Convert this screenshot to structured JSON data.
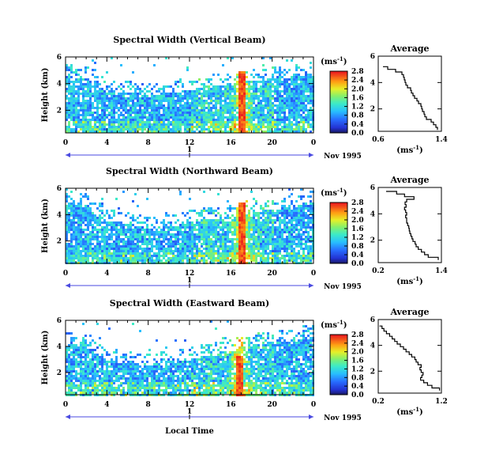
{
  "figure": {
    "xlabel": "Local Time",
    "date_label": "Nov 1995",
    "day_label": "1",
    "cbar_unit": "(ms",
    "cbar_unit_sup": "-1",
    "cbar_unit_close": ")",
    "avg_title": "Average",
    "avg_xunit": "(ms",
    "avg_xunit_sup": "-1",
    "avg_xunit_close": ")"
  },
  "chart_data": [
    {
      "type": "heatmap",
      "title": "Spectral Width (Vertical Beam)",
      "xlabel": "Local Time",
      "ylabel": "Height (km)",
      "xlim": [
        0,
        24
      ],
      "ylim": [
        0.3,
        6
      ],
      "xticks": [
        "0",
        "4",
        "8",
        "12",
        "16",
        "20",
        "0"
      ],
      "yticks": [
        "2",
        "4",
        "6"
      ],
      "colorbar": {
        "unit": "ms-1",
        "range": [
          0,
          2.8
        ],
        "ticks": [
          "0.0",
          "0.4",
          "0.8",
          "1.2",
          "1.6",
          "2.0",
          "2.4",
          "2.8"
        ]
      },
      "features": {
        "cloud_top_km": [
          4.6,
          4.5,
          3.4,
          3.5,
          3.2,
          3.4,
          3.6,
          3.9,
          4.0,
          4.3,
          4.4,
          4.6,
          4.9
        ],
        "max_band_hour": 17.0,
        "max_band_top_km": 5.0
      },
      "average": {
        "title": "Average",
        "xlabel": "ms-1",
        "xlim": [
          0.6,
          1.4
        ],
        "xticks": [
          "0.6",
          "1.4"
        ],
        "yticks": [
          "2",
          "4",
          "6"
        ],
        "height": [
          0.4,
          0.6,
          0.8,
          1.0,
          1.2,
          1.4,
          1.6,
          1.8,
          2.0,
          2.2,
          2.4,
          2.6,
          2.8,
          3.0,
          3.2,
          3.4,
          3.6,
          3.8,
          4.0,
          4.2,
          4.4,
          4.6,
          4.8,
          5.0,
          5.2
        ],
        "width": [
          1.35,
          1.33,
          1.3,
          1.27,
          1.21,
          1.19,
          1.18,
          1.16,
          1.15,
          1.14,
          1.11,
          1.09,
          1.06,
          1.04,
          1.02,
          1.01,
          0.97,
          0.95,
          0.94,
          0.93,
          0.92,
          0.9,
          0.82,
          0.72,
          0.66
        ]
      }
    },
    {
      "type": "heatmap",
      "title": "Spectral Width (Northward Beam)",
      "xlabel": "Local Time",
      "ylabel": "Height (km)",
      "xlim": [
        0,
        24
      ],
      "ylim": [
        0.3,
        6
      ],
      "xticks": [
        "0",
        "4",
        "8",
        "12",
        "16",
        "20",
        "0"
      ],
      "yticks": [
        "2",
        "4",
        "6"
      ],
      "colorbar": {
        "unit": "ms-1",
        "range": [
          0,
          2.8
        ],
        "ticks": [
          "0.0",
          "0.4",
          "0.8",
          "1.2",
          "1.6",
          "2.0",
          "2.4",
          "2.8"
        ]
      },
      "features": {
        "cloud_top_km": [
          5.0,
          4.7,
          3.6,
          3.4,
          3.0,
          3.2,
          3.5,
          3.8,
          3.9,
          4.2,
          4.4,
          4.7,
          5.0
        ],
        "max_band_hour": 17.0,
        "max_band_top_km": 5.0
      },
      "average": {
        "title": "Average",
        "xlabel": "ms-1",
        "xlim": [
          0.2,
          1.4
        ],
        "xticks": [
          "0.2",
          "1.4"
        ],
        "yticks": [
          "2",
          "4",
          "6"
        ],
        "height": [
          0.5,
          0.7,
          0.9,
          1.1,
          1.3,
          1.5,
          1.7,
          1.9,
          2.1,
          2.3,
          2.5,
          2.7,
          2.9,
          3.1,
          3.3,
          3.5,
          3.7,
          3.9,
          4.1,
          4.3,
          4.5,
          4.7,
          4.9,
          5.1,
          5.3,
          5.5,
          5.7
        ],
        "width": [
          1.34,
          1.15,
          1.08,
          1.02,
          0.96,
          0.92,
          0.9,
          0.86,
          0.84,
          0.82,
          0.8,
          0.79,
          0.78,
          0.76,
          0.74,
          0.74,
          0.72,
          0.74,
          0.72,
          0.7,
          0.73,
          0.71,
          0.74,
          0.88,
          0.7,
          0.55,
          0.35
        ]
      }
    },
    {
      "type": "heatmap",
      "title": "Spectral Width (Eastward Beam)",
      "xlabel": "Local Time",
      "ylabel": "Height (km)",
      "xlim": [
        0,
        24
      ],
      "ylim": [
        0.3,
        6
      ],
      "xticks": [
        "0",
        "4",
        "8",
        "12",
        "16",
        "20",
        "0"
      ],
      "yticks": [
        "2",
        "4",
        "6"
      ],
      "colorbar": {
        "unit": "ms-1",
        "range": [
          0,
          2.8
        ],
        "ticks": [
          "0.0",
          "0.4",
          "0.8",
          "1.2",
          "1.6",
          "2.0",
          "2.4",
          "2.8"
        ]
      },
      "features": {
        "cloud_top_km": [
          4.3,
          4.0,
          3.0,
          2.8,
          2.6,
          2.8,
          3.1,
          3.5,
          3.8,
          4.2,
          4.4,
          4.6,
          4.9
        ],
        "max_band_hour": 16.7,
        "max_band_top_km": 3.3
      },
      "average": {
        "title": "Average",
        "xlabel": "ms-1",
        "xlim": [
          0.2,
          1.2
        ],
        "xticks": [
          "0.2",
          "1.2"
        ],
        "yticks": [
          "2",
          "4",
          "6"
        ],
        "height": [
          0.5,
          0.7,
          0.9,
          1.1,
          1.3,
          1.5,
          1.7,
          1.9,
          2.1,
          2.3,
          2.5,
          2.7,
          2.9,
          3.1,
          3.3,
          3.5,
          3.7,
          3.9,
          4.1,
          4.3,
          4.5,
          4.7,
          4.9,
          5.1,
          5.3,
          5.5
        ],
        "width": [
          1.17,
          1.05,
          0.98,
          0.92,
          0.87,
          0.89,
          0.91,
          0.88,
          0.86,
          0.88,
          0.83,
          0.8,
          0.78,
          0.73,
          0.69,
          0.64,
          0.6,
          0.55,
          0.5,
          0.46,
          0.42,
          0.38,
          0.33,
          0.29,
          0.26,
          0.22
        ]
      }
    }
  ]
}
